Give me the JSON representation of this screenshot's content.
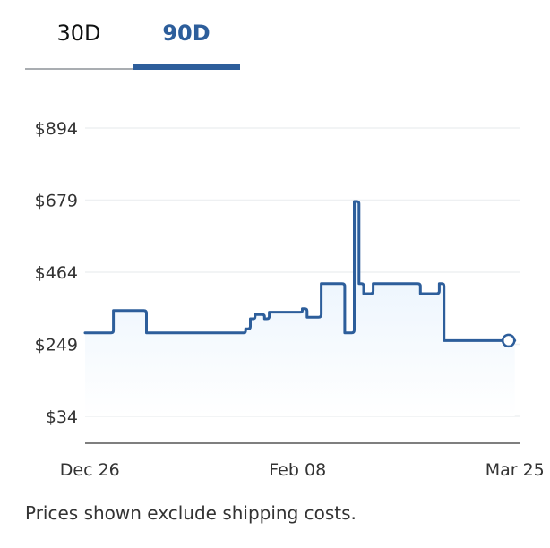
{
  "tabs": [
    {
      "label": "30D",
      "active": false
    },
    {
      "label": "90D",
      "active": true
    }
  ],
  "footer_note": "Prices shown exclude shipping costs.",
  "colors": {
    "line": "#2d5e9b",
    "active_tab": "#2d5e9b",
    "fill_top": "#e3f0fc"
  },
  "chart_data": {
    "type": "line",
    "title": "",
    "xlabel": "",
    "ylabel": "",
    "y_ticks": [
      34,
      249,
      464,
      679,
      894
    ],
    "y_tick_labels": [
      "$34",
      "$249",
      "$464",
      "$679",
      "$894"
    ],
    "ylim": [
      34,
      894
    ],
    "x_ticks": [
      "2023-12-26",
      "2024-02-08",
      "2024-03-25"
    ],
    "x_tick_labels": [
      "Dec 26",
      "Feb 08",
      "Mar 25"
    ],
    "xlim": [
      "2023-12-25",
      "2024-03-26"
    ],
    "grid": true,
    "line_style": "step",
    "series": [
      {
        "values": [
          [
            "2023-12-25",
            283
          ],
          [
            "2023-12-26",
            283
          ],
          [
            "2023-12-27",
            283
          ],
          [
            "2023-12-28",
            283
          ],
          [
            "2023-12-29",
            283
          ],
          [
            "2023-12-30",
            283
          ],
          [
            "2023-12-31",
            350
          ],
          [
            "2024-01-03",
            350
          ],
          [
            "2024-01-07",
            283
          ],
          [
            "2024-01-21",
            283
          ],
          [
            "2024-01-27",
            283
          ],
          [
            "2024-01-28",
            295
          ],
          [
            "2024-01-29",
            325
          ],
          [
            "2024-01-30",
            338
          ],
          [
            "2024-02-01",
            325
          ],
          [
            "2024-02-02",
            345
          ],
          [
            "2024-02-05",
            345
          ],
          [
            "2024-02-08",
            345
          ],
          [
            "2024-02-09",
            355
          ],
          [
            "2024-02-10",
            330
          ],
          [
            "2024-02-13",
            430
          ],
          [
            "2024-02-15",
            430
          ],
          [
            "2024-02-16",
            430
          ],
          [
            "2024-02-18",
            283
          ],
          [
            "2024-02-20",
            675
          ],
          [
            "2024-02-21",
            430
          ],
          [
            "2024-02-22",
            400
          ],
          [
            "2024-02-24",
            430
          ],
          [
            "2024-02-28",
            430
          ],
          [
            "2024-03-03",
            430
          ],
          [
            "2024-03-05",
            400
          ],
          [
            "2024-03-07",
            400
          ],
          [
            "2024-03-09",
            430
          ],
          [
            "2024-03-10",
            260
          ],
          [
            "2024-03-18",
            260
          ],
          [
            "2024-03-25",
            260
          ]
        ]
      }
    ]
  }
}
